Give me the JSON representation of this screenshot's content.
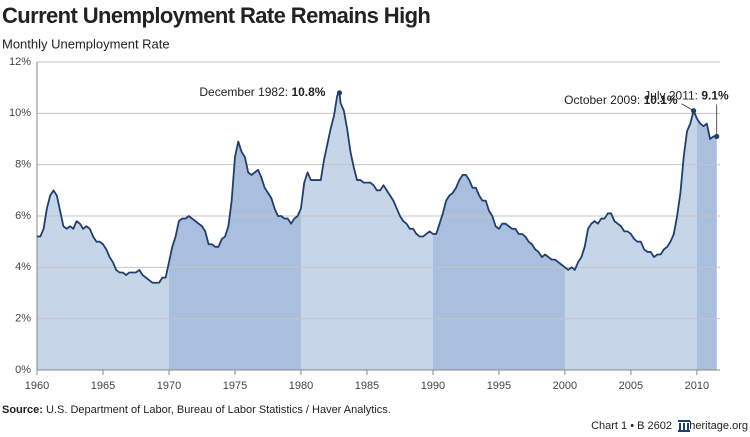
{
  "chart_data": {
    "type": "area",
    "title": "Current Unemployment Rate Remains High",
    "subtitle": "Monthly Unemployment Rate",
    "source_label": "Source:",
    "source_text": "U.S. Department of Labor, Bureau of Labor Statistics / Haver Analytics.",
    "footer_chart": "Chart 1 • B 2602",
    "footer_site": "heritage.org",
    "line_color": "#1f3f6e",
    "fill_color": "#c7d5e9",
    "band_color": "#a9bfdd",
    "xlim": [
      1960,
      2011.75
    ],
    "xticks": [
      1960,
      1965,
      1970,
      1975,
      1980,
      1985,
      1990,
      1995,
      2000,
      2005,
      2010
    ],
    "ylim": [
      0,
      12
    ],
    "yticks": [
      {
        "value": 0,
        "label": "0%"
      },
      {
        "value": 2,
        "label": "2%"
      },
      {
        "value": 4,
        "label": "4%"
      },
      {
        "value": 6,
        "label": "6%"
      },
      {
        "value": 8,
        "label": "8%"
      },
      {
        "value": 10,
        "label": "10%"
      },
      {
        "value": 12,
        "label": "12%"
      }
    ],
    "grid": true,
    "x": [
      1960,
      1960.25,
      1960.5,
      1960.75,
      1961,
      1961.25,
      1961.5,
      1961.75,
      1962,
      1962.25,
      1962.5,
      1962.75,
      1963,
      1963.25,
      1963.5,
      1963.75,
      1964,
      1964.25,
      1964.5,
      1964.75,
      1965,
      1965.25,
      1965.5,
      1965.75,
      1966,
      1966.25,
      1966.5,
      1966.75,
      1967,
      1967.25,
      1967.5,
      1967.75,
      1968,
      1968.25,
      1968.5,
      1968.75,
      1969,
      1969.25,
      1969.5,
      1969.75,
      1970,
      1970.25,
      1970.5,
      1970.75,
      1971,
      1971.25,
      1971.5,
      1971.75,
      1972,
      1972.25,
      1972.5,
      1972.75,
      1973,
      1973.25,
      1973.5,
      1973.75,
      1974,
      1974.25,
      1974.5,
      1974.75,
      1975,
      1975.25,
      1975.5,
      1975.75,
      1976,
      1976.25,
      1976.5,
      1976.75,
      1977,
      1977.25,
      1977.5,
      1977.75,
      1978,
      1978.25,
      1978.5,
      1978.75,
      1979,
      1979.25,
      1979.5,
      1979.75,
      1980,
      1980.25,
      1980.5,
      1980.75,
      1981,
      1981.25,
      1981.5,
      1981.75,
      1982,
      1982.25,
      1982.5,
      1982.75,
      1982.92,
      1983,
      1983.25,
      1983.5,
      1983.75,
      1984,
      1984.25,
      1984.5,
      1984.75,
      1985,
      1985.25,
      1985.5,
      1985.75,
      1986,
      1986.25,
      1986.5,
      1986.75,
      1987,
      1987.25,
      1987.5,
      1987.75,
      1988,
      1988.25,
      1988.5,
      1988.75,
      1989,
      1989.25,
      1989.5,
      1989.75,
      1990,
      1990.25,
      1990.5,
      1990.75,
      1991,
      1991.25,
      1991.5,
      1991.75,
      1992,
      1992.25,
      1992.5,
      1992.75,
      1993,
      1993.25,
      1993.5,
      1993.75,
      1994,
      1994.25,
      1994.5,
      1994.75,
      1995,
      1995.25,
      1995.5,
      1995.75,
      1996,
      1996.25,
      1996.5,
      1996.75,
      1997,
      1997.25,
      1997.5,
      1997.75,
      1998,
      1998.25,
      1998.5,
      1998.75,
      1999,
      1999.25,
      1999.5,
      1999.75,
      2000,
      2000.25,
      2000.5,
      2000.75,
      2001,
      2001.25,
      2001.5,
      2001.75,
      2002,
      2002.25,
      2002.5,
      2002.75,
      2003,
      2003.25,
      2003.5,
      2003.75,
      2004,
      2004.25,
      2004.5,
      2004.75,
      2005,
      2005.25,
      2005.5,
      2005.75,
      2006,
      2006.25,
      2006.5,
      2006.75,
      2007,
      2007.25,
      2007.5,
      2007.75,
      2008,
      2008.25,
      2008.5,
      2008.75,
      2009,
      2009.25,
      2009.5,
      2009.75,
      2010,
      2010.25,
      2010.5,
      2010.75,
      2011,
      2011.25,
      2011.5
    ],
    "values": [
      5.2,
      5.2,
      5.5,
      6.3,
      6.8,
      7.0,
      6.8,
      6.2,
      5.6,
      5.5,
      5.6,
      5.5,
      5.8,
      5.7,
      5.5,
      5.6,
      5.5,
      5.2,
      5.0,
      5.0,
      4.9,
      4.7,
      4.4,
      4.2,
      3.9,
      3.8,
      3.8,
      3.7,
      3.8,
      3.8,
      3.8,
      3.9,
      3.7,
      3.6,
      3.5,
      3.4,
      3.4,
      3.4,
      3.6,
      3.6,
      4.2,
      4.8,
      5.2,
      5.8,
      5.9,
      5.9,
      6.0,
      5.9,
      5.8,
      5.7,
      5.6,
      5.4,
      4.9,
      4.9,
      4.8,
      4.8,
      5.1,
      5.2,
      5.6,
      6.6,
      8.3,
      8.9,
      8.5,
      8.3,
      7.7,
      7.6,
      7.7,
      7.8,
      7.5,
      7.1,
      6.9,
      6.7,
      6.3,
      6.0,
      6.0,
      5.9,
      5.9,
      5.7,
      5.9,
      6.0,
      6.3,
      7.3,
      7.7,
      7.4,
      7.4,
      7.4,
      7.4,
      8.2,
      8.8,
      9.4,
      9.9,
      10.7,
      10.8,
      10.4,
      10.1,
      9.4,
      8.5,
      7.9,
      7.4,
      7.4,
      7.3,
      7.3,
      7.3,
      7.2,
      7.0,
      7.0,
      7.2,
      7.0,
      6.8,
      6.6,
      6.3,
      6.0,
      5.8,
      5.7,
      5.5,
      5.5,
      5.3,
      5.2,
      5.2,
      5.3,
      5.4,
      5.3,
      5.3,
      5.7,
      6.1,
      6.6,
      6.8,
      6.9,
      7.1,
      7.4,
      7.6,
      7.6,
      7.4,
      7.1,
      7.1,
      6.8,
      6.6,
      6.6,
      6.2,
      6.0,
      5.6,
      5.5,
      5.7,
      5.7,
      5.6,
      5.5,
      5.5,
      5.3,
      5.3,
      5.2,
      5.0,
      4.9,
      4.7,
      4.6,
      4.4,
      4.5,
      4.4,
      4.3,
      4.3,
      4.2,
      4.1,
      4.0,
      3.9,
      4.0,
      3.9,
      4.2,
      4.4,
      4.8,
      5.5,
      5.7,
      5.8,
      5.7,
      5.9,
      5.9,
      6.1,
      6.1,
      5.8,
      5.7,
      5.6,
      5.4,
      5.4,
      5.3,
      5.1,
      5.0,
      5.0,
      4.7,
      4.6,
      4.6,
      4.4,
      4.5,
      4.5,
      4.7,
      4.8,
      5.0,
      5.3,
      6.0,
      6.9,
      8.3,
      9.3,
      9.6,
      10.1,
      9.8,
      9.6,
      9.5,
      9.6,
      9.0,
      9.1,
      9.1
    ],
    "annotations": [
      {
        "label": "December 1982:",
        "value_label": "10.8%",
        "x": 1982.92,
        "y": 10.8
      },
      {
        "label": "October 2009:",
        "value_label": "10.1%",
        "x": 2009.75,
        "y": 10.1
      },
      {
        "label": "July 2011:",
        "value_label": "9.1%",
        "x": 2011.5,
        "y": 9.1
      }
    ]
  }
}
